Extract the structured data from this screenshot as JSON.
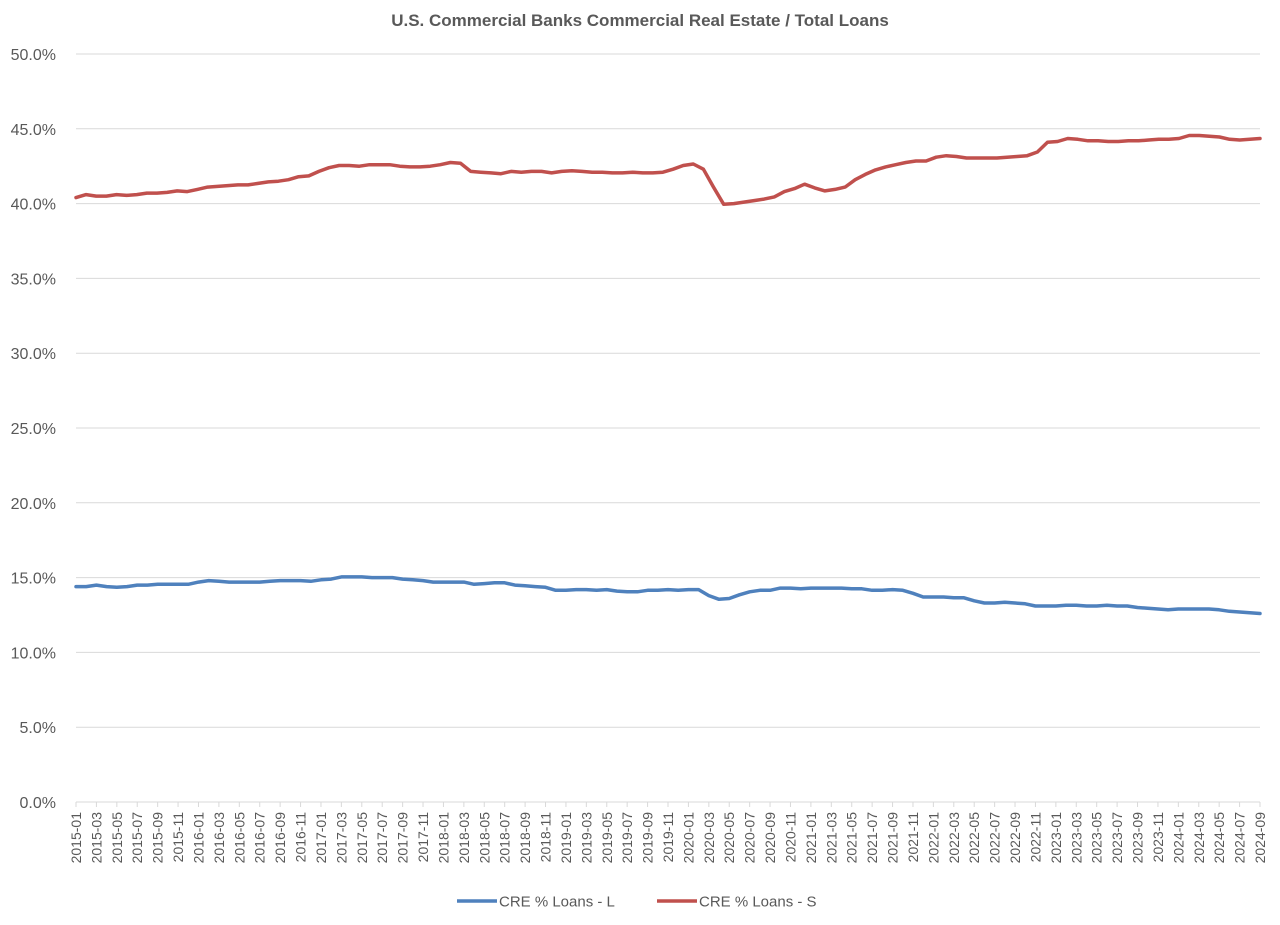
{
  "chart_data": {
    "type": "line",
    "title": "U.S. Commercial Banks Commercial Real Estate / Total Loans",
    "xlabel": "",
    "ylabel": "",
    "ylim": [
      0,
      50
    ],
    "y_ticks": [
      "0.0%",
      "5.0%",
      "10.0%",
      "15.0%",
      "20.0%",
      "25.0%",
      "30.0%",
      "35.0%",
      "40.0%",
      "45.0%",
      "50.0%"
    ],
    "y_tick_values": [
      0,
      5,
      10,
      15,
      20,
      25,
      30,
      35,
      40,
      45,
      50
    ],
    "grid": true,
    "legend_position": "bottom",
    "x_start": "2015-01",
    "x_end": "2024-09",
    "x_tick_labels": [
      "2015-01",
      "2015-03",
      "2015-05",
      "2015-07",
      "2015-09",
      "2015-11",
      "2016-01",
      "2016-03",
      "2016-05",
      "2016-07",
      "2016-09",
      "2016-11",
      "2017-01",
      "2017-03",
      "2017-05",
      "2017-07",
      "2017-09",
      "2017-11",
      "2018-01",
      "2018-03",
      "2018-05",
      "2018-07",
      "2018-09",
      "2018-11",
      "2019-01",
      "2019-03",
      "2019-05",
      "2019-07",
      "2019-09",
      "2019-11",
      "2020-01",
      "2020-03",
      "2020-05",
      "2020-07",
      "2020-09",
      "2020-11",
      "2021-01",
      "2021-03",
      "2021-05",
      "2021-07",
      "2021-09",
      "2021-11",
      "2022-01",
      "2022-03",
      "2022-05",
      "2022-07",
      "2022-09",
      "2022-11",
      "2023-01",
      "2023-03",
      "2023-05",
      "2023-07",
      "2023-09",
      "2023-11",
      "2024-01",
      "2024-03",
      "2024-05",
      "2024-07",
      "2024-09"
    ],
    "series": [
      {
        "name": "CRE % Loans - L",
        "color": "#4f81bd",
        "values": [
          14.4,
          14.4,
          14.5,
          14.4,
          14.35,
          14.4,
          14.5,
          14.5,
          14.55,
          14.55,
          14.55,
          14.55,
          14.7,
          14.8,
          14.75,
          14.7,
          14.7,
          14.7,
          14.7,
          14.75,
          14.8,
          14.8,
          14.8,
          14.75,
          14.85,
          14.9,
          15.05,
          15.05,
          15.05,
          15.0,
          15.0,
          15.0,
          14.9,
          14.85,
          14.8,
          14.7,
          14.7,
          14.7,
          14.7,
          14.55,
          14.6,
          14.65,
          14.65,
          14.5,
          14.45,
          14.4,
          14.35,
          14.15,
          14.15,
          14.2,
          14.2,
          14.15,
          14.2,
          14.1,
          14.05,
          14.05,
          14.15,
          14.15,
          14.2,
          14.15,
          14.2,
          14.2,
          13.8,
          13.55,
          13.6,
          13.85,
          14.05,
          14.15,
          14.15,
          14.3,
          14.3,
          14.25,
          14.3,
          14.3,
          14.3,
          14.3,
          14.25,
          14.25,
          14.15,
          14.15,
          14.2,
          14.15,
          13.95,
          13.7,
          13.7,
          13.7,
          13.65,
          13.65,
          13.45,
          13.3,
          13.3,
          13.35,
          13.3,
          13.25,
          13.1,
          13.1,
          13.1,
          13.15,
          13.15,
          13.1,
          13.1,
          13.15,
          13.1,
          13.1,
          13.0,
          12.95,
          12.9,
          12.85,
          12.9,
          12.9,
          12.9,
          12.9,
          12.85,
          12.75,
          12.7,
          12.65,
          12.6
        ]
      },
      {
        "name": "CRE % Loans - S",
        "color": "#c0504d",
        "values": [
          40.4,
          40.6,
          40.5,
          40.5,
          40.6,
          40.55,
          40.6,
          40.7,
          40.7,
          40.75,
          40.85,
          40.8,
          40.95,
          41.1,
          41.15,
          41.2,
          41.25,
          41.25,
          41.35,
          41.45,
          41.5,
          41.6,
          41.8,
          41.85,
          42.15,
          42.4,
          42.55,
          42.55,
          42.5,
          42.6,
          42.6,
          42.6,
          42.5,
          42.45,
          42.45,
          42.5,
          42.6,
          42.75,
          42.7,
          42.15,
          42.1,
          42.05,
          42.0,
          42.15,
          42.1,
          42.15,
          42.15,
          42.05,
          42.15,
          42.2,
          42.15,
          42.1,
          42.1,
          42.05,
          42.05,
          42.1,
          42.05,
          42.05,
          42.1,
          42.3,
          42.55,
          42.65,
          42.3,
          41.1,
          39.95,
          40.0,
          40.1,
          40.2,
          40.3,
          40.45,
          40.8,
          41.0,
          41.3,
          41.05,
          40.85,
          40.95,
          41.1,
          41.6,
          41.95,
          42.25,
          42.45,
          42.6,
          42.75,
          42.85,
          42.85,
          43.1,
          43.2,
          43.15,
          43.05,
          43.05,
          43.05,
          43.05,
          43.1,
          43.15,
          43.2,
          43.45,
          44.1,
          44.15,
          44.35,
          44.3,
          44.2,
          44.2,
          44.15,
          44.15,
          44.2,
          44.2,
          44.25,
          44.3,
          44.3,
          44.35,
          44.55,
          44.55,
          44.5,
          44.45,
          44.3,
          44.25,
          44.3,
          44.35
        ]
      }
    ]
  }
}
